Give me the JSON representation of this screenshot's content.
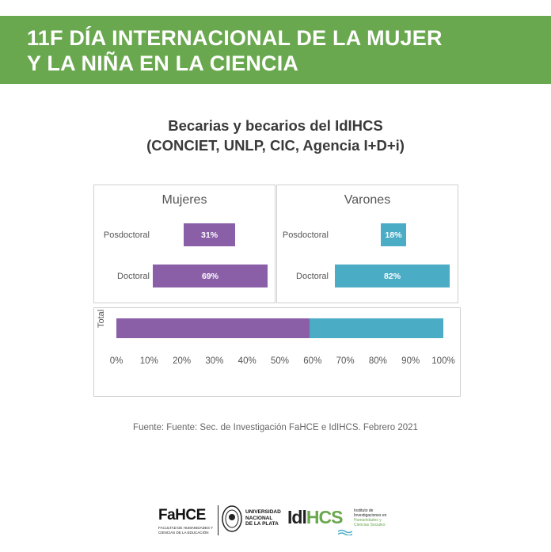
{
  "banner": {
    "line1": "11F DÍA INTERNACIONAL DE LA MUJER",
    "line2": "Y LA NIÑA EN LA CIENCIA",
    "color": "#6aa84f"
  },
  "chart_data": [
    {
      "type": "bar",
      "orientation": "horizontal",
      "title": "Becarias y becarios del IdIHCS",
      "subtitle": "(CONCIET, UNLP, CIC, Agencia I+D+i)",
      "panel_title": "Mujeres",
      "categories": [
        "Posdoctoral",
        "Doctoral"
      ],
      "values": [
        31,
        69
      ],
      "labels": [
        "31%",
        "69%"
      ],
      "color": "#8a5fa8"
    },
    {
      "type": "bar",
      "orientation": "horizontal",
      "panel_title": "Varones",
      "categories": [
        "Posdoctoral",
        "Doctoral"
      ],
      "values": [
        18,
        82
      ],
      "labels": [
        "18%",
        "82%"
      ],
      "color": "#4bacc6"
    },
    {
      "type": "bar",
      "orientation": "horizontal",
      "stacked": true,
      "categories": [
        "Total"
      ],
      "series": [
        {
          "values": [
            59
          ],
          "color": "#8a5fa8"
        },
        {
          "values": [
            41
          ],
          "color": "#4bacc6"
        }
      ],
      "xlim": [
        0,
        100
      ],
      "xticks": [
        "0%",
        "10%",
        "20%",
        "30%",
        "40%",
        "50%",
        "60%",
        "70%",
        "80%",
        "90%",
        "100%"
      ]
    }
  ],
  "source": "Fuente: Fuente: Sec. de Investigación FaHCE e IdIHCS. Febrero 2021",
  "footer": {
    "fahce_name": "FaHCE",
    "fahce_full": "FACULTAD DE HUMANIDADES Y CIENCIAS DE LA EDUCACIÓN",
    "unlp_line1": "UNIVERSIDAD",
    "unlp_line2": "NACIONAL",
    "unlp_line3": "DE LA PLATA",
    "idihcs_prefix": "Idl",
    "idihcs_suffix": "HCS",
    "idihcs_desc1": "Instituto de",
    "idihcs_desc2": "Investigaciones en",
    "idihcs_desc3": "Humanidades y",
    "idihcs_desc4": "Ciencias Sociales",
    "seal_icon": "university-seal-icon",
    "waves_icon": "waves-icon"
  }
}
